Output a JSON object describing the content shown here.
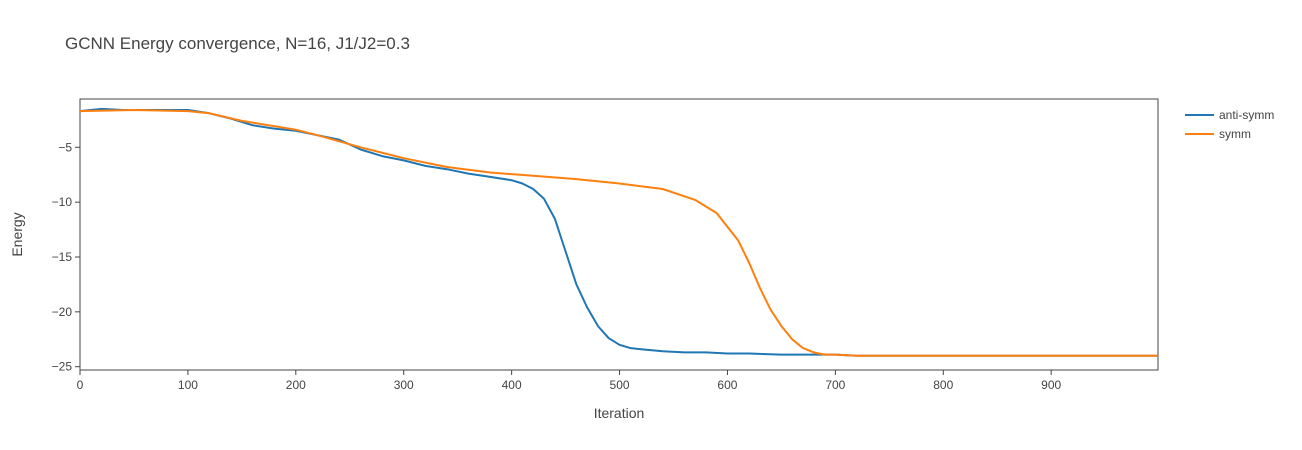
{
  "chart_data": {
    "type": "line",
    "title": "GCNN Energy convergence, N=16, J1/J2=0.3",
    "xlabel": "Iteration",
    "ylabel": "Energy",
    "xlim": [
      0,
      999
    ],
    "ylim": [
      -25.3,
      -0.6
    ],
    "x_ticks": [
      0,
      100,
      200,
      300,
      400,
      500,
      600,
      700,
      800,
      900
    ],
    "y_ticks": [
      -5,
      -10,
      -15,
      -20,
      -25
    ],
    "y_tick_labels": [
      "−5",
      "−10",
      "−15",
      "−20",
      "−25"
    ],
    "grid": false,
    "legend_position": "top-right",
    "series": [
      {
        "name": "anti-symm",
        "color": "#1f77b4",
        "x": [
          0,
          20,
          40,
          60,
          80,
          100,
          120,
          140,
          160,
          180,
          200,
          220,
          240,
          260,
          280,
          300,
          320,
          340,
          360,
          380,
          400,
          410,
          420,
          430,
          440,
          450,
          460,
          470,
          480,
          490,
          500,
          510,
          520,
          540,
          560,
          580,
          600,
          620,
          650,
          680,
          700,
          720,
          760,
          800,
          850,
          900,
          950,
          999
        ],
        "y": [
          -1.7,
          -1.5,
          -1.6,
          -1.6,
          -1.6,
          -1.6,
          -1.9,
          -2.4,
          -3.0,
          -3.3,
          -3.5,
          -3.9,
          -4.3,
          -5.2,
          -5.8,
          -6.2,
          -6.7,
          -7.0,
          -7.4,
          -7.7,
          -8.0,
          -8.3,
          -8.8,
          -9.7,
          -11.5,
          -14.5,
          -17.5,
          -19.6,
          -21.3,
          -22.4,
          -23.0,
          -23.3,
          -23.4,
          -23.6,
          -23.7,
          -23.7,
          -23.8,
          -23.8,
          -23.9,
          -23.9,
          -23.9,
          -24.0,
          -24.0,
          -24.0,
          -24.0,
          -24.0,
          -24.0,
          -24.0
        ]
      },
      {
        "name": "symm",
        "color": "#ff7f0e",
        "x": [
          0,
          50,
          100,
          120,
          150,
          200,
          220,
          260,
          300,
          340,
          380,
          420,
          460,
          500,
          540,
          570,
          590,
          610,
          620,
          630,
          640,
          650,
          660,
          670,
          680,
          690,
          700,
          720,
          760,
          800,
          850,
          900,
          950,
          999
        ],
        "y": [
          -1.7,
          -1.6,
          -1.7,
          -1.9,
          -2.6,
          -3.4,
          -3.9,
          -5.0,
          -6.0,
          -6.8,
          -7.3,
          -7.6,
          -7.9,
          -8.3,
          -8.8,
          -9.8,
          -11.0,
          -13.5,
          -15.5,
          -17.8,
          -19.8,
          -21.3,
          -22.5,
          -23.3,
          -23.7,
          -23.9,
          -23.9,
          -24.0,
          -24.0,
          -24.0,
          -24.0,
          -24.0,
          -24.0,
          -24.0
        ]
      }
    ]
  }
}
